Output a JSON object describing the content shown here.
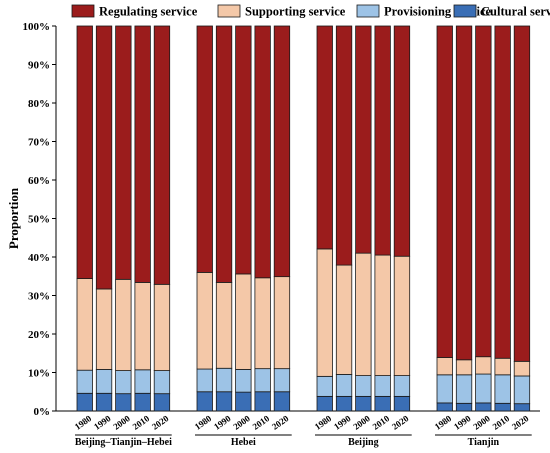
{
  "chart_data": {
    "type": "bar",
    "stacked": true,
    "ylabel": "Proportion",
    "ylim": [
      0,
      100
    ],
    "yticks": [
      "0%",
      "10%",
      "20%",
      "30%",
      "40%",
      "50%",
      "60%",
      "70%",
      "80%",
      "90%",
      "100%"
    ],
    "legend_position": "top",
    "groups": [
      "Beijing–Tianjin–Hebei",
      "Hebei",
      "Beijing",
      "Tianjin"
    ],
    "years": [
      "1980",
      "1990",
      "2000",
      "2010",
      "2020"
    ],
    "series": [
      {
        "name": "Cultural service",
        "color": "#3a6eb5",
        "values": [
          [
            4.6,
            4.6,
            4.5,
            4.6,
            4.5
          ],
          [
            5.0,
            5.0,
            4.9,
            5.0,
            5.0
          ],
          [
            3.8,
            3.8,
            3.8,
            3.8,
            3.8
          ],
          [
            2.1,
            2.0,
            2.1,
            2.0,
            1.9
          ]
        ]
      },
      {
        "name": "Provisioning service",
        "color": "#9dc3e6",
        "values": [
          [
            6.0,
            6.2,
            6.0,
            6.1,
            6.0
          ],
          [
            5.9,
            6.1,
            5.9,
            6.0,
            6.0
          ],
          [
            5.2,
            5.7,
            5.4,
            5.4,
            5.4
          ],
          [
            7.3,
            7.4,
            7.5,
            7.4,
            7.2
          ]
        ]
      },
      {
        "name": "Supporting service",
        "color": "#f4c8a8",
        "values": [
          [
            23.8,
            20.9,
            23.7,
            22.7,
            22.4
          ],
          [
            25.1,
            22.3,
            24.8,
            23.6,
            23.9
          ],
          [
            33.1,
            28.4,
            31.8,
            31.3,
            31.0
          ],
          [
            4.5,
            3.9,
            4.5,
            4.3,
            3.8
          ]
        ]
      },
      {
        "name": "Regulating service",
        "color": "#9b1c1c",
        "values": [
          [
            65.6,
            68.3,
            65.8,
            66.6,
            67.1
          ],
          [
            64.0,
            66.6,
            64.4,
            65.4,
            65.1
          ],
          [
            57.9,
            62.1,
            59.0,
            59.5,
            59.8
          ],
          [
            86.1,
            86.7,
            85.9,
            86.3,
            87.1
          ]
        ]
      }
    ],
    "legend_order": [
      "Regulating service",
      "Supporting service",
      "Provisioning service",
      "Cultural service"
    ]
  }
}
